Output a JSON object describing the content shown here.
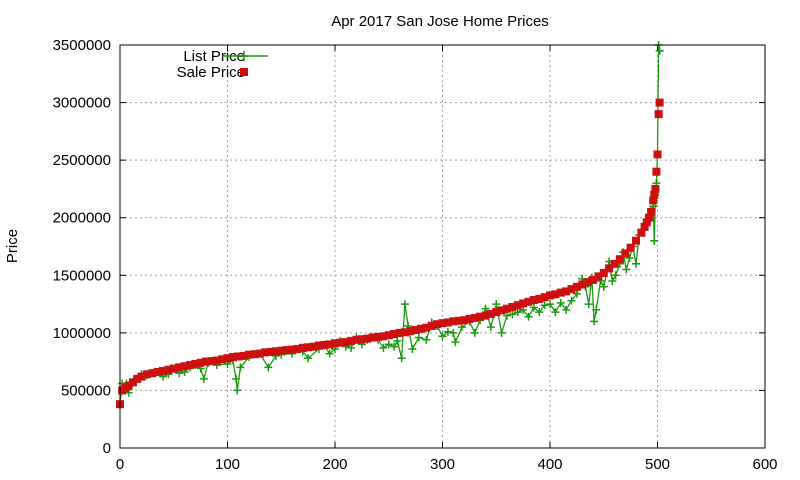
{
  "chart_data": {
    "type": "scatter",
    "title": "Apr 2017 San Jose Home Prices",
    "xlabel": "",
    "ylabel": "Price",
    "xlim": [
      0,
      600
    ],
    "ylim": [
      0,
      3500000
    ],
    "xticks": [
      0,
      100,
      200,
      300,
      400,
      500,
      600
    ],
    "yticks": [
      0,
      500000,
      1000000,
      1500000,
      2000000,
      2500000,
      3000000,
      3500000
    ],
    "grid": true,
    "legend_position": "top-left",
    "series": [
      {
        "name": "List Price",
        "style": "linespoints",
        "marker": "plus",
        "color": "#1a9a0e",
        "values": [
          [
            0,
            380000
          ],
          [
            2,
            560000
          ],
          [
            4,
            500000
          ],
          [
            6,
            560000
          ],
          [
            8,
            480000
          ],
          [
            10,
            570000
          ],
          [
            15,
            600000
          ],
          [
            20,
            640000
          ],
          [
            25,
            630000
          ],
          [
            30,
            650000
          ],
          [
            35,
            660000
          ],
          [
            40,
            620000
          ],
          [
            45,
            640000
          ],
          [
            50,
            690000
          ],
          [
            55,
            650000
          ],
          [
            60,
            660000
          ],
          [
            65,
            700000
          ],
          [
            70,
            720000
          ],
          [
            75,
            690000
          ],
          [
            78,
            600000
          ],
          [
            82,
            740000
          ],
          [
            90,
            720000
          ],
          [
            100,
            730000
          ],
          [
            105,
            760000
          ],
          [
            108,
            600000
          ],
          [
            109,
            500000
          ],
          [
            112,
            700000
          ],
          [
            120,
            790000
          ],
          [
            130,
            820000
          ],
          [
            138,
            700000
          ],
          [
            145,
            800000
          ],
          [
            150,
            810000
          ],
          [
            160,
            820000
          ],
          [
            170,
            840000
          ],
          [
            175,
            780000
          ],
          [
            185,
            860000
          ],
          [
            190,
            890000
          ],
          [
            195,
            820000
          ],
          [
            200,
            860000
          ],
          [
            205,
            930000
          ],
          [
            210,
            880000
          ],
          [
            215,
            870000
          ],
          [
            220,
            960000
          ],
          [
            225,
            900000
          ],
          [
            230,
            940000
          ],
          [
            240,
            940000
          ],
          [
            245,
            870000
          ],
          [
            250,
            900000
          ],
          [
            255,
            880000
          ],
          [
            258,
            930000
          ],
          [
            262,
            780000
          ],
          [
            265,
            1250000
          ],
          [
            268,
            1060000
          ],
          [
            272,
            860000
          ],
          [
            278,
            960000
          ],
          [
            285,
            940000
          ],
          [
            290,
            1090000
          ],
          [
            295,
            1060000
          ],
          [
            300,
            970000
          ],
          [
            305,
            1010000
          ],
          [
            310,
            1000000
          ],
          [
            312,
            920000
          ],
          [
            318,
            1050000
          ],
          [
            325,
            1100000
          ],
          [
            330,
            1000000
          ],
          [
            335,
            1110000
          ],
          [
            340,
            1210000
          ],
          [
            345,
            1050000
          ],
          [
            350,
            1250000
          ],
          [
            355,
            1000000
          ],
          [
            360,
            1150000
          ],
          [
            365,
            1160000
          ],
          [
            370,
            1180000
          ],
          [
            375,
            1200000
          ],
          [
            380,
            1140000
          ],
          [
            385,
            1220000
          ],
          [
            390,
            1180000
          ],
          [
            395,
            1240000
          ],
          [
            400,
            1250000
          ],
          [
            405,
            1180000
          ],
          [
            410,
            1260000
          ],
          [
            415,
            1200000
          ],
          [
            420,
            1280000
          ],
          [
            425,
            1340000
          ],
          [
            430,
            1470000
          ],
          [
            433,
            1400000
          ],
          [
            436,
            1250000
          ],
          [
            439,
            1480000
          ],
          [
            441,
            1100000
          ],
          [
            443,
            1200000
          ],
          [
            447,
            1450000
          ],
          [
            450,
            1400000
          ],
          [
            455,
            1620000
          ],
          [
            458,
            1450000
          ],
          [
            461,
            1500000
          ],
          [
            465,
            1600000
          ],
          [
            468,
            1700000
          ],
          [
            471,
            1550000
          ],
          [
            474,
            1650000
          ],
          [
            477,
            1750000
          ],
          [
            480,
            1600000
          ],
          [
            483,
            1850000
          ],
          [
            486,
            1900000
          ],
          [
            489,
            1950000
          ],
          [
            492,
            2000000
          ],
          [
            494,
            2060000
          ],
          [
            496,
            2100000
          ],
          [
            497,
            1800000
          ],
          [
            498,
            2200000
          ],
          [
            499,
            2300000
          ],
          [
            500,
            2550000
          ],
          [
            501,
            3500000
          ],
          [
            502,
            3450000
          ]
        ]
      },
      {
        "name": "Sale Price",
        "style": "points",
        "marker": "square",
        "color": "#cc1010",
        "values": [
          [
            0,
            380000
          ],
          [
            2,
            500000
          ],
          [
            5,
            520000
          ],
          [
            8,
            540000
          ],
          [
            12,
            570000
          ],
          [
            16,
            600000
          ],
          [
            20,
            620000
          ],
          [
            25,
            640000
          ],
          [
            30,
            650000
          ],
          [
            35,
            660000
          ],
          [
            40,
            670000
          ],
          [
            45,
            680000
          ],
          [
            50,
            690000
          ],
          [
            55,
            700000
          ],
          [
            60,
            710000
          ],
          [
            65,
            720000
          ],
          [
            70,
            730000
          ],
          [
            75,
            740000
          ],
          [
            80,
            750000
          ],
          [
            85,
            755000
          ],
          [
            90,
            760000
          ],
          [
            95,
            770000
          ],
          [
            100,
            780000
          ],
          [
            105,
            790000
          ],
          [
            110,
            795000
          ],
          [
            115,
            800000
          ],
          [
            120,
            810000
          ],
          [
            125,
            815000
          ],
          [
            130,
            820000
          ],
          [
            135,
            830000
          ],
          [
            140,
            835000
          ],
          [
            145,
            840000
          ],
          [
            150,
            845000
          ],
          [
            155,
            850000
          ],
          [
            160,
            855000
          ],
          [
            165,
            860000
          ],
          [
            170,
            870000
          ],
          [
            175,
            875000
          ],
          [
            180,
            880000
          ],
          [
            185,
            890000
          ],
          [
            190,
            895000
          ],
          [
            195,
            900000
          ],
          [
            200,
            910000
          ],
          [
            205,
            915000
          ],
          [
            210,
            920000
          ],
          [
            215,
            930000
          ],
          [
            220,
            940000
          ],
          [
            225,
            945000
          ],
          [
            230,
            950000
          ],
          [
            235,
            960000
          ],
          [
            240,
            965000
          ],
          [
            245,
            970000
          ],
          [
            250,
            980000
          ],
          [
            255,
            990000
          ],
          [
            260,
            1000000
          ],
          [
            265,
            1005000
          ],
          [
            270,
            1015000
          ],
          [
            275,
            1025000
          ],
          [
            280,
            1035000
          ],
          [
            285,
            1045000
          ],
          [
            290,
            1060000
          ],
          [
            295,
            1075000
          ],
          [
            300,
            1085000
          ],
          [
            305,
            1090000
          ],
          [
            310,
            1100000
          ],
          [
            315,
            1105000
          ],
          [
            320,
            1110000
          ],
          [
            325,
            1120000
          ],
          [
            330,
            1130000
          ],
          [
            335,
            1140000
          ],
          [
            340,
            1150000
          ],
          [
            345,
            1165000
          ],
          [
            350,
            1180000
          ],
          [
            355,
            1195000
          ],
          [
            360,
            1210000
          ],
          [
            365,
            1225000
          ],
          [
            370,
            1240000
          ],
          [
            375,
            1255000
          ],
          [
            380,
            1270000
          ],
          [
            385,
            1285000
          ],
          [
            390,
            1295000
          ],
          [
            395,
            1310000
          ],
          [
            400,
            1325000
          ],
          [
            405,
            1335000
          ],
          [
            410,
            1350000
          ],
          [
            415,
            1360000
          ],
          [
            420,
            1380000
          ],
          [
            425,
            1400000
          ],
          [
            430,
            1420000
          ],
          [
            435,
            1440000
          ],
          [
            440,
            1460000
          ],
          [
            445,
            1490000
          ],
          [
            450,
            1520000
          ],
          [
            455,
            1560000
          ],
          [
            460,
            1600000
          ],
          [
            465,
            1640000
          ],
          [
            470,
            1690000
          ],
          [
            475,
            1740000
          ],
          [
            480,
            1800000
          ],
          [
            485,
            1870000
          ],
          [
            488,
            1920000
          ],
          [
            490,
            1960000
          ],
          [
            492,
            2000000
          ],
          [
            494,
            2050000
          ],
          [
            496,
            2150000
          ],
          [
            497,
            2200000
          ],
          [
            498,
            2250000
          ],
          [
            499,
            2400000
          ],
          [
            500,
            2550000
          ],
          [
            501,
            2900000
          ],
          [
            502,
            3000000
          ]
        ]
      }
    ]
  }
}
